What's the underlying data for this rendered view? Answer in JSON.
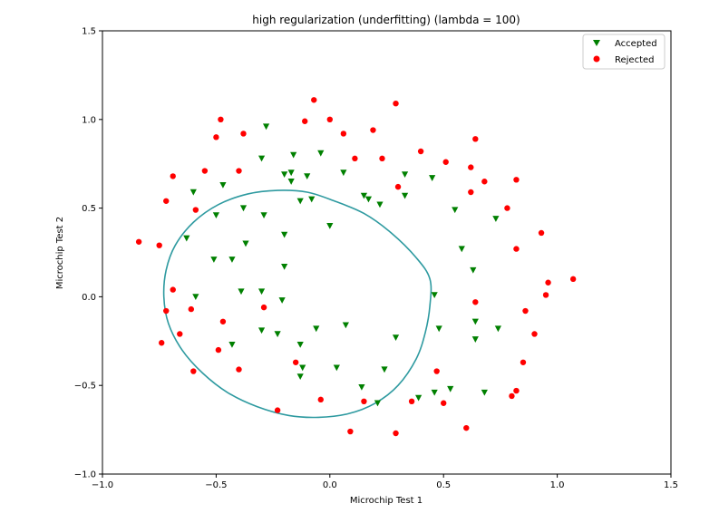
{
  "chart_data": {
    "type": "scatter",
    "title": "high regularization (underfitting) (lambda = 100)",
    "xlabel": "Microchip Test 1",
    "ylabel": "Microchip Test 2",
    "xlim": [
      -1.0,
      1.5
    ],
    "ylim": [
      -1.0,
      1.5
    ],
    "xticks": [
      -1.0,
      -0.5,
      0.0,
      0.5,
      1.0,
      1.5
    ],
    "yticks": [
      -1.0,
      -0.5,
      0.0,
      0.5,
      1.0,
      1.5
    ],
    "xtick_labels": [
      "−1.0",
      "−0.5",
      "0.0",
      "0.5",
      "1.0",
      "1.5"
    ],
    "ytick_labels": [
      "−1.0",
      "−0.5",
      "0.0",
      "0.5",
      "1.0",
      "1.5"
    ],
    "grid": false,
    "legend_position": "top-right",
    "series": [
      {
        "name": "Accepted",
        "marker": "triangle-down",
        "color": "#008000",
        "points": [
          [
            -0.28,
            0.96
          ],
          [
            -0.16,
            0.8
          ],
          [
            -0.04,
            0.81
          ],
          [
            -0.1,
            0.68
          ],
          [
            -0.2,
            0.69
          ],
          [
            -0.17,
            0.7
          ],
          [
            -0.17,
            0.65
          ],
          [
            0.06,
            0.7
          ],
          [
            -0.3,
            0.78
          ],
          [
            -0.47,
            0.63
          ],
          [
            -0.6,
            0.59
          ],
          [
            -0.5,
            0.46
          ],
          [
            -0.38,
            0.5
          ],
          [
            -0.29,
            0.46
          ],
          [
            -0.2,
            0.35
          ],
          [
            -0.13,
            0.54
          ],
          [
            -0.08,
            0.55
          ],
          [
            0.0,
            0.4
          ],
          [
            -0.63,
            0.33
          ],
          [
            -0.37,
            0.3
          ],
          [
            -0.51,
            0.21
          ],
          [
            -0.43,
            0.21
          ],
          [
            -0.2,
            0.17
          ],
          [
            -0.59,
            0.0
          ],
          [
            -0.39,
            0.03
          ],
          [
            -0.3,
            0.03
          ],
          [
            -0.21,
            -0.02
          ],
          [
            -0.43,
            -0.27
          ],
          [
            -0.3,
            -0.19
          ],
          [
            -0.23,
            -0.21
          ],
          [
            -0.13,
            -0.27
          ],
          [
            -0.06,
            -0.18
          ],
          [
            0.07,
            -0.16
          ],
          [
            -0.12,
            -0.4
          ],
          [
            -0.13,
            -0.45
          ],
          [
            0.03,
            -0.4
          ],
          [
            0.14,
            -0.51
          ],
          [
            0.21,
            -0.6
          ],
          [
            0.24,
            -0.41
          ],
          [
            0.29,
            -0.23
          ],
          [
            0.39,
            -0.57
          ],
          [
            0.46,
            -0.54
          ],
          [
            0.53,
            -0.52
          ],
          [
            0.48,
            -0.18
          ],
          [
            0.46,
            0.01
          ],
          [
            0.64,
            -0.14
          ],
          [
            0.64,
            -0.24
          ],
          [
            0.74,
            -0.18
          ],
          [
            0.68,
            -0.54
          ],
          [
            0.63,
            0.15
          ],
          [
            0.58,
            0.27
          ],
          [
            0.55,
            0.49
          ],
          [
            0.73,
            0.44
          ],
          [
            0.45,
            0.67
          ],
          [
            0.33,
            0.69
          ],
          [
            0.33,
            0.57
          ],
          [
            0.22,
            0.52
          ],
          [
            0.17,
            0.55
          ],
          [
            0.15,
            0.57
          ]
        ]
      },
      {
        "name": "Rejected",
        "marker": "circle",
        "color": "#ff0000",
        "points": [
          [
            -0.07,
            1.11
          ],
          [
            0.29,
            1.09
          ],
          [
            -0.48,
            1.0
          ],
          [
            -0.5,
            0.9
          ],
          [
            -0.38,
            0.92
          ],
          [
            -0.11,
            0.99
          ],
          [
            0.0,
            1.0
          ],
          [
            0.06,
            0.92
          ],
          [
            0.19,
            0.94
          ],
          [
            0.4,
            0.82
          ],
          [
            0.64,
            0.89
          ],
          [
            0.51,
            0.76
          ],
          [
            0.62,
            0.73
          ],
          [
            0.68,
            0.65
          ],
          [
            0.82,
            0.66
          ],
          [
            0.62,
            0.59
          ],
          [
            0.78,
            0.5
          ],
          [
            0.11,
            0.78
          ],
          [
            0.23,
            0.78
          ],
          [
            0.3,
            0.62
          ],
          [
            -0.4,
            0.71
          ],
          [
            -0.55,
            0.71
          ],
          [
            -0.69,
            0.68
          ],
          [
            -0.72,
            0.54
          ],
          [
            -0.59,
            0.49
          ],
          [
            -0.84,
            0.31
          ],
          [
            -0.75,
            0.29
          ],
          [
            0.82,
            0.27
          ],
          [
            0.93,
            0.36
          ],
          [
            -0.69,
            0.04
          ],
          [
            -0.72,
            -0.08
          ],
          [
            -0.61,
            -0.07
          ],
          [
            -0.47,
            -0.14
          ],
          [
            -0.29,
            -0.06
          ],
          [
            -0.66,
            -0.21
          ],
          [
            -0.74,
            -0.26
          ],
          [
            -0.49,
            -0.3
          ],
          [
            -0.4,
            -0.41
          ],
          [
            -0.6,
            -0.42
          ],
          [
            -0.15,
            -0.37
          ],
          [
            -0.04,
            -0.58
          ],
          [
            -0.23,
            -0.64
          ],
          [
            0.15,
            -0.59
          ],
          [
            0.09,
            -0.76
          ],
          [
            0.29,
            -0.77
          ],
          [
            0.36,
            -0.59
          ],
          [
            0.47,
            -0.42
          ],
          [
            0.5,
            -0.6
          ],
          [
            0.6,
            -0.74
          ],
          [
            0.82,
            -0.53
          ],
          [
            0.8,
            -0.56
          ],
          [
            0.85,
            -0.37
          ],
          [
            0.9,
            -0.21
          ],
          [
            0.86,
            -0.08
          ],
          [
            0.96,
            0.08
          ],
          [
            0.95,
            0.01
          ],
          [
            1.07,
            0.1
          ],
          [
            0.64,
            -0.03
          ]
        ]
      }
    ],
    "decision_boundary": {
      "color": "#2e9aa0",
      "points": [
        [
          -0.23,
          0.6
        ],
        [
          -0.1,
          0.59
        ],
        [
          0.02,
          0.54
        ],
        [
          0.15,
          0.47
        ],
        [
          0.27,
          0.36
        ],
        [
          0.38,
          0.22
        ],
        [
          0.44,
          0.1
        ],
        [
          0.44,
          -0.05
        ],
        [
          0.42,
          -0.2
        ],
        [
          0.38,
          -0.35
        ],
        [
          0.3,
          -0.5
        ],
        [
          0.2,
          -0.6
        ],
        [
          0.08,
          -0.66
        ],
        [
          -0.05,
          -0.68
        ],
        [
          -0.18,
          -0.67
        ],
        [
          -0.32,
          -0.62
        ],
        [
          -0.45,
          -0.54
        ],
        [
          -0.56,
          -0.43
        ],
        [
          -0.65,
          -0.3
        ],
        [
          -0.71,
          -0.15
        ],
        [
          -0.73,
          0.0
        ],
        [
          -0.72,
          0.15
        ],
        [
          -0.68,
          0.29
        ],
        [
          -0.6,
          0.42
        ],
        [
          -0.49,
          0.52
        ],
        [
          -0.36,
          0.58
        ]
      ]
    }
  }
}
